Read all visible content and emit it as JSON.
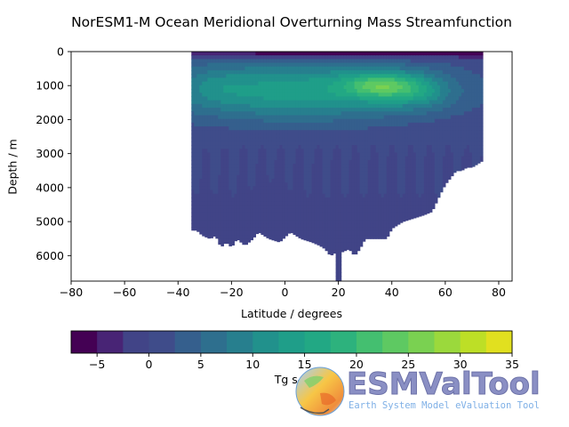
{
  "chart_data": {
    "type": "contourf",
    "title": "NorESM1-M Ocean Meridional Overturning Mass Streamfunction",
    "xlabel": "Latitude / degrees",
    "ylabel": "Depth / m",
    "xlim": [
      -80,
      85
    ],
    "ylim": [
      6750,
      0
    ],
    "xticks": [
      -80,
      -60,
      -40,
      -20,
      0,
      20,
      40,
      60,
      80
    ],
    "xtick_labels": [
      "−80",
      "−60",
      "−40",
      "−20",
      "0",
      "20",
      "40",
      "60",
      "80"
    ],
    "yticks": [
      0,
      1000,
      2000,
      3000,
      4000,
      5000,
      6000
    ],
    "ytick_labels": [
      "0",
      "1000",
      "2000",
      "3000",
      "4000",
      "5000",
      "6000"
    ],
    "colorbar": {
      "label": "Tg s-1",
      "orientation": "horizontal",
      "levels": [
        -7.5,
        -5,
        -2.5,
        0,
        2.5,
        5,
        7.5,
        10,
        12.5,
        15,
        17.5,
        20,
        22.5,
        25,
        27.5,
        30,
        32.5,
        35
      ],
      "ticks": [
        -5,
        0,
        5,
        10,
        15,
        20,
        25,
        30,
        35
      ],
      "tick_labels": [
        "−5",
        "0",
        "5",
        "10",
        "15",
        "20",
        "25",
        "30",
        "35"
      ],
      "colors": [
        "#440154",
        "#482475",
        "#414487",
        "#3f4c8a",
        "#355f8d",
        "#2e6f8e",
        "#277f8e",
        "#21918c",
        "#1f9e89",
        "#22a884",
        "#2db27d",
        "#44bf70",
        "#5ec962",
        "#7ad151",
        "#9bd93c",
        "#bddf26",
        "#e1e01f"
      ]
    },
    "grid": false,
    "ocean_extent_lat": [
      -35,
      74
    ],
    "features": [
      {
        "name": "surface negative cell",
        "lat": [
          -35,
          74
        ],
        "depth": [
          0,
          300
        ],
        "value": -5
      },
      {
        "name": "upper overturning cell",
        "lat": [
          -35,
          65
        ],
        "depth": [
          300,
          2500
        ],
        "value": 15
      },
      {
        "name": "overturning maximum",
        "lat": 35,
        "depth": 1000,
        "value": 27
      },
      {
        "name": "deep negative cell",
        "lat": [
          -10,
          0
        ],
        "depth": [
          3700,
          5000
        ],
        "value": -2
      },
      {
        "name": "bottom water",
        "lat": [
          -35,
          60
        ],
        "depth": [
          3500,
          6000
        ],
        "value": 0
      }
    ]
  },
  "logo": {
    "title": "ESMValTool",
    "subtitle": "Earth System Model eValuation Tool"
  }
}
